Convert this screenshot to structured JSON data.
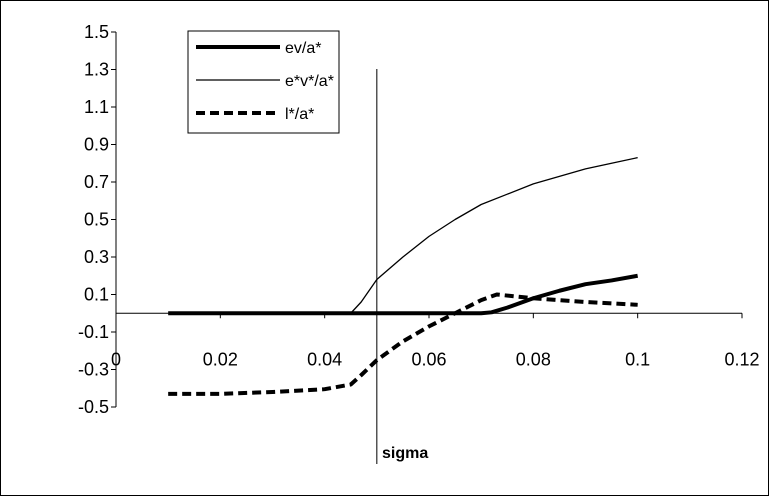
{
  "chart_data": {
    "type": "line",
    "title": "",
    "xlabel": "sigma",
    "ylabel": "",
    "xlim": [
      0,
      0.12
    ],
    "ylim": [
      -0.5,
      1.5
    ],
    "x_ticks": [
      0,
      0.02,
      0.04,
      0.06,
      0.08,
      0.1,
      0.12
    ],
    "x_tick_labels": [
      "0",
      "0.02",
      "0.04",
      "0.06",
      "0.08",
      "0.1",
      "0.12"
    ],
    "y_ticks": [
      1.5,
      1.3,
      1.1,
      0.9,
      0.7,
      0.5,
      0.3,
      0.1,
      -0.1,
      -0.3,
      -0.5
    ],
    "y_tick_labels": [
      "1.5",
      "1.3",
      "1.1",
      "0.9",
      "0.7",
      "0.5",
      "0.3",
      "0.1",
      "-0.1",
      "-0.3",
      "-0.5"
    ],
    "x_axis_crosses_y_at": 0,
    "vertical_marker_x": 0.05,
    "grid": false,
    "legend_position": "top-left",
    "series": [
      {
        "name": "ev/a*",
        "style": "thick",
        "color": "#000000",
        "points": [
          [
            0.01,
            0
          ],
          [
            0.02,
            0
          ],
          [
            0.03,
            0
          ],
          [
            0.04,
            0
          ],
          [
            0.05,
            0
          ],
          [
            0.06,
            0
          ],
          [
            0.07,
            0
          ],
          [
            0.072,
            0.005
          ],
          [
            0.075,
            0.03
          ],
          [
            0.08,
            0.08
          ],
          [
            0.085,
            0.12
          ],
          [
            0.09,
            0.155
          ],
          [
            0.095,
            0.175
          ],
          [
            0.1,
            0.2
          ]
        ]
      },
      {
        "name": "e*v*/a*",
        "style": "thin",
        "color": "#000000",
        "points": [
          [
            0.045,
            0
          ],
          [
            0.047,
            0.06
          ],
          [
            0.05,
            0.18
          ],
          [
            0.055,
            0.3
          ],
          [
            0.06,
            0.41
          ],
          [
            0.065,
            0.5
          ],
          [
            0.07,
            0.58
          ],
          [
            0.075,
            0.635
          ],
          [
            0.08,
            0.69
          ],
          [
            0.085,
            0.73
          ],
          [
            0.09,
            0.77
          ],
          [
            0.095,
            0.8
          ],
          [
            0.1,
            0.83
          ]
        ]
      },
      {
        "name": "l*/a*",
        "style": "dashed",
        "color": "#000000",
        "points": [
          [
            0.01,
            -0.43
          ],
          [
            0.02,
            -0.43
          ],
          [
            0.03,
            -0.42
          ],
          [
            0.04,
            -0.405
          ],
          [
            0.045,
            -0.38
          ],
          [
            0.047,
            -0.33
          ],
          [
            0.05,
            -0.25
          ],
          [
            0.055,
            -0.15
          ],
          [
            0.06,
            -0.07
          ],
          [
            0.065,
            0
          ],
          [
            0.07,
            0.07
          ],
          [
            0.073,
            0.1
          ],
          [
            0.08,
            0.08
          ],
          [
            0.09,
            0.06
          ],
          [
            0.1,
            0.045
          ]
        ]
      }
    ]
  }
}
